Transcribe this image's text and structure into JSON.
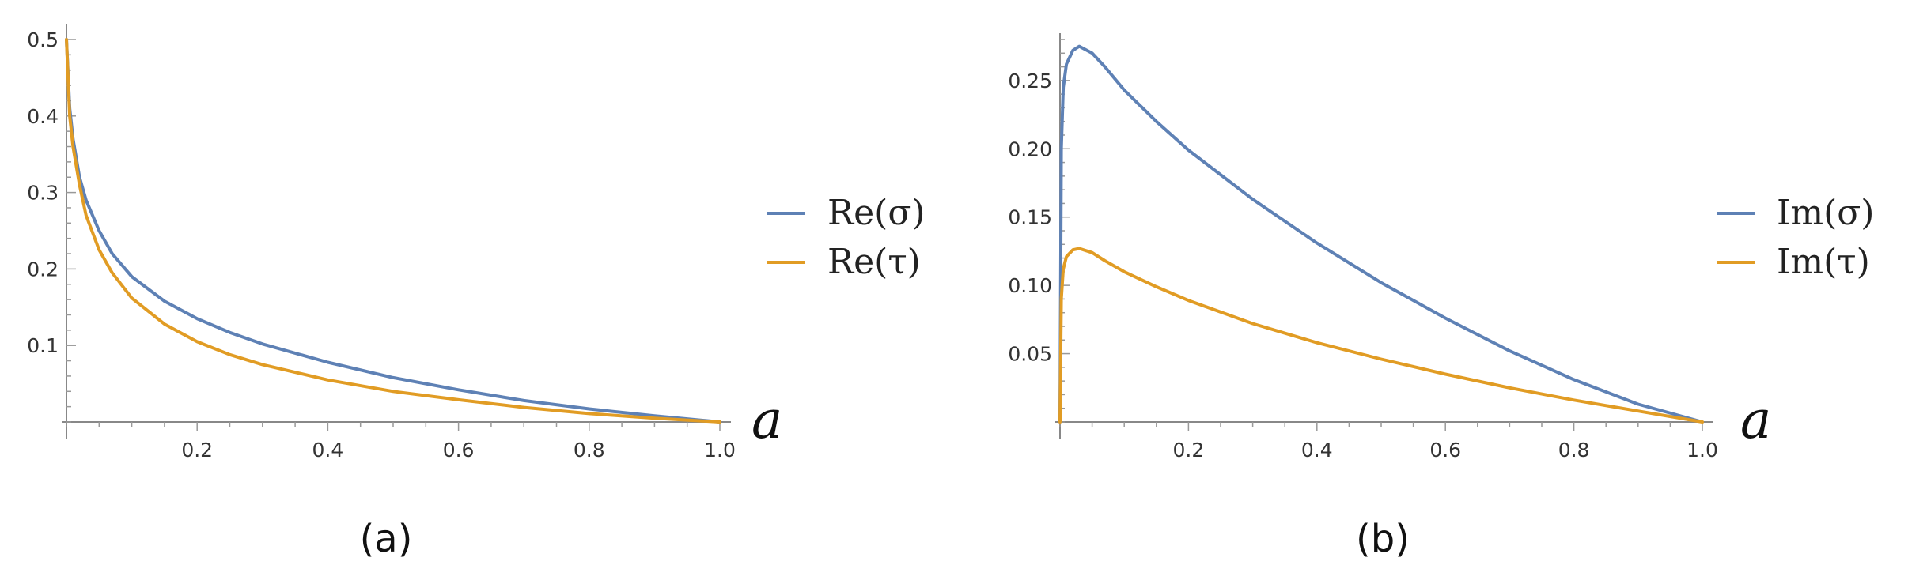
{
  "chart_data": [
    {
      "type": "line",
      "panel_label": "(a)",
      "x_variable": "a",
      "xlim": [
        0,
        1.0
      ],
      "ylim": [
        0,
        0.5
      ],
      "x_ticks": [
        "0.2",
        "0.4",
        "0.6",
        "0.8",
        "1.0"
      ],
      "x_tick_values": [
        0.2,
        0.4,
        0.6,
        0.8,
        1.0
      ],
      "y_ticks": [
        "0.1",
        "0.2",
        "0.3",
        "0.4",
        "0.5"
      ],
      "y_tick_values": [
        0.1,
        0.2,
        0.3,
        0.4,
        0.5
      ],
      "legend_position": "right",
      "series": [
        {
          "name": "Re(σ)",
          "color": "#5E81B5",
          "x": [
            0,
            0.005,
            0.01,
            0.02,
            0.03,
            0.05,
            0.07,
            0.1,
            0.15,
            0.2,
            0.25,
            0.3,
            0.4,
            0.5,
            0.6,
            0.7,
            0.8,
            0.9,
            1.0
          ],
          "y": [
            0.5,
            0.41,
            0.37,
            0.32,
            0.29,
            0.25,
            0.22,
            0.19,
            0.158,
            0.135,
            0.117,
            0.102,
            0.078,
            0.058,
            0.042,
            0.028,
            0.017,
            0.008,
            0.0
          ]
        },
        {
          "name": "Re(τ)",
          "color": "#E19C24",
          "x": [
            0,
            0.005,
            0.01,
            0.02,
            0.03,
            0.05,
            0.07,
            0.1,
            0.15,
            0.2,
            0.25,
            0.3,
            0.4,
            0.5,
            0.6,
            0.7,
            0.8,
            0.9,
            1.0
          ],
          "y": [
            0.5,
            0.4,
            0.36,
            0.31,
            0.27,
            0.225,
            0.195,
            0.162,
            0.128,
            0.105,
            0.088,
            0.075,
            0.055,
            0.04,
            0.029,
            0.019,
            0.011,
            0.005,
            0.0
          ]
        }
      ]
    },
    {
      "type": "line",
      "panel_label": "(b)",
      "x_variable": "a",
      "xlim": [
        0,
        1.0
      ],
      "ylim": [
        0,
        0.28
      ],
      "x_ticks": [
        "0.2",
        "0.4",
        "0.6",
        "0.8",
        "1.0"
      ],
      "x_tick_values": [
        0.2,
        0.4,
        0.6,
        0.8,
        1.0
      ],
      "y_ticks": [
        "0.05",
        "0.10",
        "0.15",
        "0.20",
        "0.25"
      ],
      "y_tick_values": [
        0.05,
        0.1,
        0.15,
        0.2,
        0.25
      ],
      "legend_position": "right",
      "series": [
        {
          "name": "Im(σ)",
          "color": "#5E81B5",
          "x": [
            0,
            0.002,
            0.005,
            0.01,
            0.02,
            0.03,
            0.05,
            0.07,
            0.1,
            0.15,
            0.2,
            0.3,
            0.4,
            0.5,
            0.6,
            0.7,
            0.8,
            0.9,
            1.0
          ],
          "y": [
            0.0,
            0.2,
            0.245,
            0.262,
            0.272,
            0.275,
            0.27,
            0.26,
            0.243,
            0.22,
            0.199,
            0.163,
            0.131,
            0.102,
            0.076,
            0.052,
            0.031,
            0.013,
            0.0
          ]
        },
        {
          "name": "Im(τ)",
          "color": "#E19C24",
          "x": [
            0,
            0.002,
            0.005,
            0.01,
            0.02,
            0.03,
            0.05,
            0.07,
            0.1,
            0.15,
            0.2,
            0.3,
            0.4,
            0.5,
            0.6,
            0.7,
            0.8,
            0.9,
            1.0
          ],
          "y": [
            0.0,
            0.09,
            0.112,
            0.121,
            0.126,
            0.127,
            0.124,
            0.118,
            0.11,
            0.099,
            0.089,
            0.072,
            0.058,
            0.046,
            0.035,
            0.025,
            0.016,
            0.008,
            0.0
          ]
        }
      ]
    }
  ]
}
